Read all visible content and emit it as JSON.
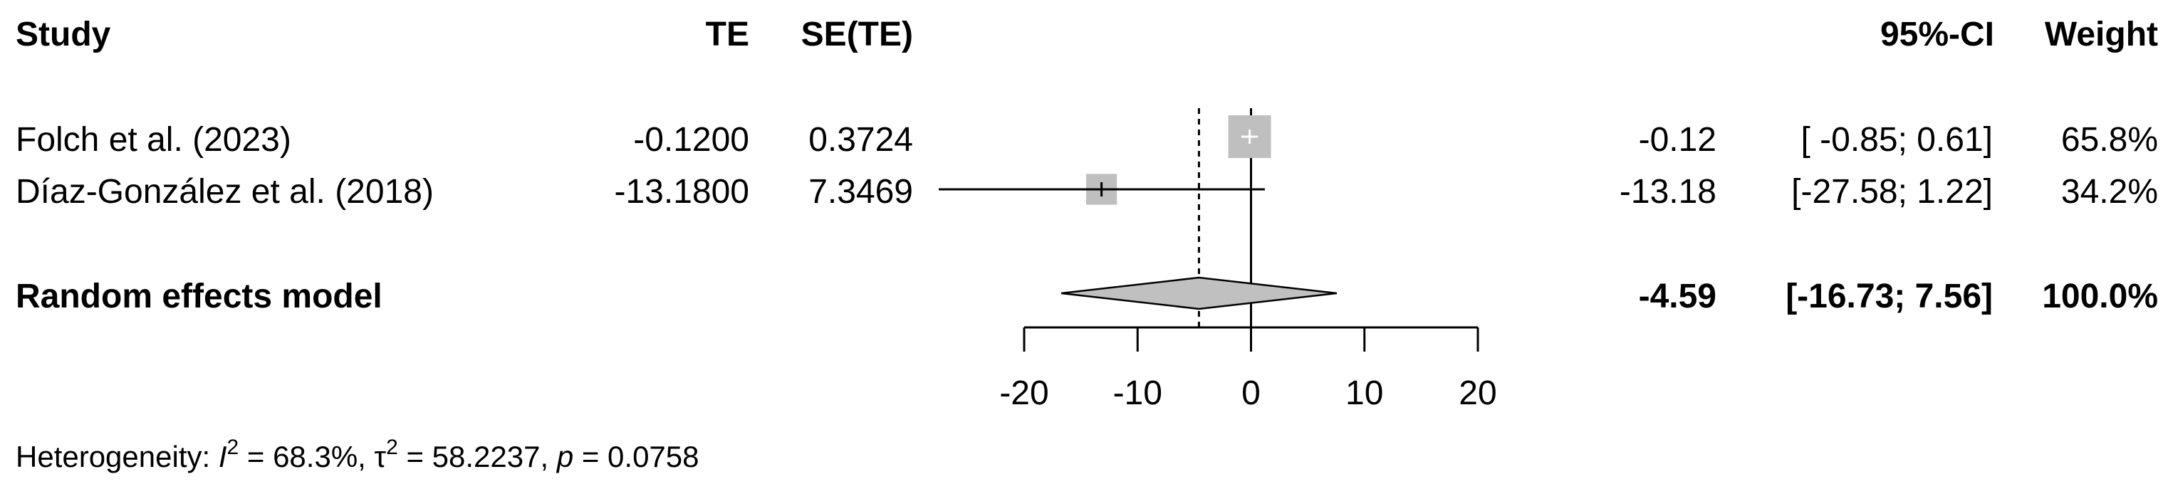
{
  "headers": {
    "study": "Study",
    "te": "TE",
    "se": "SE(TE)",
    "ci": "95%-CI",
    "weight": "Weight"
  },
  "chart_data": {
    "type": "forest",
    "axis": {
      "xlim": [
        -20,
        20
      ],
      "ticks": [
        -20,
        -10,
        0,
        10,
        20
      ],
      "reference_line": 0
    },
    "studies": [
      {
        "name": "Folch et al. (2023)",
        "te": "-0.1200",
        "se": "0.3724",
        "est_text": "-0.12",
        "ci_text": "[ -0.85; 0.61]",
        "weight_text": "65.8%",
        "est": -0.12,
        "lower": -0.85,
        "upper": 0.61,
        "weight": 65.8
      },
      {
        "name": "Díaz-González et al. (2018)",
        "te": "-13.1800",
        "se": "7.3469",
        "est_text": "-13.18",
        "ci_text": "[-27.58; 1.22]",
        "weight_text": "34.2%",
        "est": -13.18,
        "lower": -27.58,
        "upper": 1.22,
        "weight": 34.2
      }
    ],
    "pooled": {
      "name": "Random effects model",
      "est_text": "-4.59",
      "ci_text": "[-16.73; 7.56]",
      "weight_text": "100.0%",
      "est": -4.59,
      "lower": -16.73,
      "upper": 7.56
    },
    "heterogeneity": {
      "prefix": "Heterogeneity: ",
      "i2_label": "I",
      "i2_sup": "2",
      "i2_value": " = 68.3%, ",
      "tau_label": "τ",
      "tau_sup": "2",
      "tau_value": " = 58.2237, ",
      "p_label": "p",
      "p_value": " = 0.0758"
    },
    "colors": {
      "box": "#bfbfbf",
      "diamond": "#c0c0c0",
      "line": "#000000"
    }
  }
}
